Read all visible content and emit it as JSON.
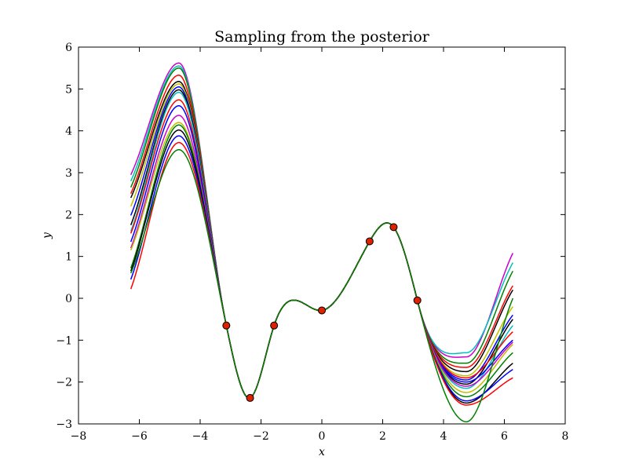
{
  "chart_data": {
    "type": "line",
    "title": "Sampling from the posterior",
    "xlabel": "x",
    "ylabel": "y",
    "xlim": [
      -8,
      8
    ],
    "ylim": [
      -3,
      6
    ],
    "x_ticks": [
      -8,
      -6,
      -4,
      -2,
      0,
      2,
      4,
      6,
      8
    ],
    "x_tick_labels": [
      "−8",
      "−6",
      "−4",
      "−2",
      "0",
      "2",
      "4",
      "6",
      "8"
    ],
    "y_ticks": [
      -3,
      -2,
      -1,
      0,
      1,
      2,
      3,
      4,
      5,
      6
    ],
    "y_tick_labels": [
      "−3",
      "−2",
      "−1",
      "0",
      "1",
      "2",
      "3",
      "4",
      "5",
      "6"
    ],
    "grid": false,
    "x_range_of_samples": [
      -6.28,
      6.28
    ],
    "observations": {
      "x": [
        -3.14,
        -2.36,
        -1.57,
        0.0,
        1.57,
        2.36,
        3.14
      ],
      "y": [
        -0.65,
        -2.38,
        -0.65,
        -0.29,
        1.36,
        1.7,
        -0.05
      ],
      "color": "#dd2200"
    },
    "samples": {
      "peak_at_x": -4.7,
      "peak_values": [
        5.62,
        5.55,
        5.5,
        5.33,
        5.18,
        5.12,
        5.05,
        4.98,
        4.92,
        4.74,
        4.6,
        4.37,
        4.2,
        4.14,
        4.02,
        3.88,
        3.72,
        3.55
      ],
      "left_end_values": [
        2.95,
        2.8,
        2.65,
        2.5,
        2.4,
        2.2,
        1.98,
        1.75,
        1.6,
        1.55,
        1.35,
        1.2,
        1.15,
        0.72,
        0.65,
        0.45,
        0.22,
        0.6
      ],
      "trough_at_x": 4.75,
      "trough_values": [
        -1.4,
        -1.3,
        -1.55,
        -1.65,
        -1.75,
        -1.85,
        -1.95,
        -2.05,
        -2.15,
        -1.9,
        -2.0,
        -2.1,
        -2.25,
        -2.35,
        -2.5,
        -2.45,
        -2.55,
        -2.95
      ],
      "right_end_values": [
        1.08,
        0.85,
        0.65,
        0.3,
        0.2,
        -0.2,
        -0.4,
        -0.5,
        -0.65,
        -0.8,
        -1.0,
        -1.05,
        -1.1,
        -1.3,
        -1.55,
        -1.7,
        -1.9,
        0.0
      ],
      "colors": [
        "#cc00cc",
        "#00bfbf",
        "#008000",
        "#ff0000",
        "#000000",
        "#bfbf00",
        "#0000ff",
        "#000000",
        "#00bfbf",
        "#ff0000",
        "#0000ff",
        "#cc00cc",
        "#bfbf00",
        "#008000",
        "#000000",
        "#0000ff",
        "#ff0000",
        "#008000"
      ]
    }
  }
}
